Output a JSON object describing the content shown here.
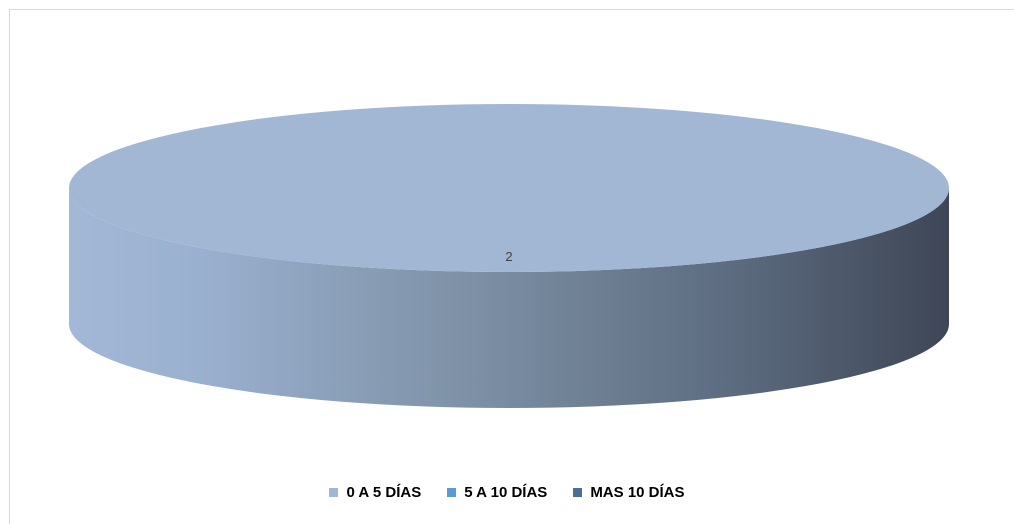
{
  "chart_data": {
    "type": "pie",
    "style": "3d",
    "title": "",
    "categories": [
      "0 A 5 DÍAS",
      "5 A 10 DÍAS",
      "MAS 10 DÍAS"
    ],
    "values": [
      2,
      0,
      0
    ],
    "data_labels": [
      "2",
      "",
      ""
    ],
    "colors": [
      "#9fb6d4",
      "#5b9bd5",
      "#4a6f9a"
    ],
    "legend_position": "bottom"
  },
  "legend": {
    "items": [
      {
        "label": "0 A 5 DÍAS",
        "color": "#9fb6d4"
      },
      {
        "label": "5 A 10 DÍAS",
        "color": "#5b9bd5"
      },
      {
        "label": "MAS 10 DÍAS",
        "color": "#4a6f9a"
      }
    ]
  }
}
